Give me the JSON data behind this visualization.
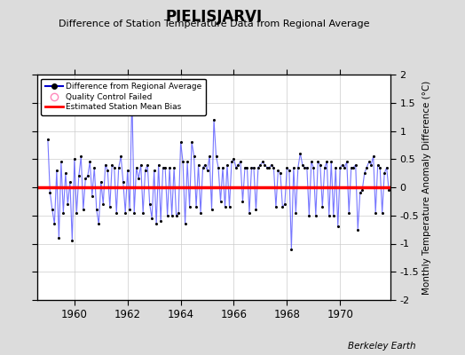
{
  "title": "PIELISJARVI",
  "subtitle": "Difference of Station Temperature Data from Regional Average",
  "ylabel": "Monthly Temperature Anomaly Difference (°C)",
  "x_tick_labels": [
    "1960",
    "1962",
    "1964",
    "1966",
    "1968",
    "1970"
  ],
  "ylim": [
    -2,
    2
  ],
  "bias_value": 0.0,
  "background_color": "#dcdcdc",
  "plot_bg_color": "#ffffff",
  "line_color": "#5555ff",
  "bias_color": "#ff0000",
  "watermark": "Berkeley Earth",
  "monthly_data": [
    0.85,
    -0.1,
    -0.4,
    -0.65,
    0.3,
    -0.9,
    0.45,
    -0.45,
    0.25,
    -0.3,
    0.1,
    -0.95,
    0.5,
    -0.45,
    0.2,
    0.55,
    -0.4,
    0.15,
    0.2,
    0.45,
    -0.15,
    0.35,
    -0.4,
    -0.65,
    0.1,
    -0.3,
    0.4,
    0.3,
    -0.35,
    0.4,
    0.35,
    -0.45,
    0.35,
    0.55,
    0.1,
    -0.45,
    0.3,
    -0.4,
    1.65,
    -0.45,
    0.35,
    0.15,
    0.4,
    -0.45,
    0.3,
    0.4,
    -0.3,
    -0.55,
    0.3,
    -0.65,
    0.4,
    -0.6,
    0.35,
    0.35,
    -0.5,
    0.35,
    -0.5,
    0.35,
    -0.5,
    -0.45,
    0.8,
    0.45,
    -0.65,
    0.45,
    -0.35,
    0.8,
    0.55,
    -0.35,
    0.4,
    -0.45,
    0.35,
    0.4,
    0.3,
    0.55,
    -0.4,
    1.2,
    0.55,
    0.35,
    -0.25,
    0.35,
    -0.35,
    0.4,
    -0.35,
    0.45,
    0.5,
    0.35,
    0.4,
    0.45,
    -0.25,
    0.35,
    0.35,
    -0.45,
    0.35,
    0.35,
    -0.4,
    0.35,
    0.4,
    0.45,
    0.4,
    0.35,
    0.35,
    0.4,
    0.35,
    -0.35,
    0.3,
    0.25,
    -0.35,
    -0.3,
    0.35,
    0.3,
    -1.1,
    0.35,
    -0.45,
    0.35,
    0.6,
    0.4,
    0.35,
    0.35,
    -0.5,
    0.45,
    0.35,
    -0.5,
    0.45,
    0.4,
    -0.35,
    0.35,
    0.45,
    -0.5,
    0.45,
    -0.5,
    0.35,
    -0.7,
    0.35,
    0.4,
    0.35,
    0.45,
    -0.45,
    0.35,
    0.35,
    0.4,
    -0.75,
    -0.1,
    -0.05,
    0.25,
    0.35,
    0.45,
    0.4,
    0.55,
    -0.45,
    0.4,
    0.35,
    -0.45,
    0.25,
    0.35,
    -0.05,
    -0.05
  ],
  "start_year": 1959,
  "start_month": 1
}
